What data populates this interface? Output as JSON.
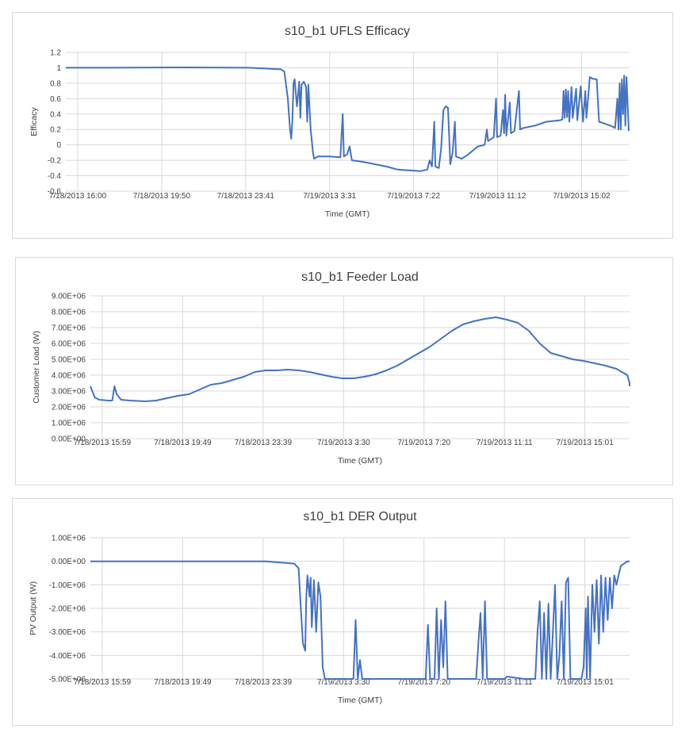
{
  "chart_data": [
    {
      "type": "line",
      "title": "s10_b1 UFLS Efficacy",
      "xlabel": "Time (GMT)",
      "ylabel": "Efficacy",
      "x_tick_labels": [
        "7/18/2013 16:00",
        "7/18/2013 19:50",
        "7/18/2013 23:41",
        "7/19/2013 3:31",
        "7/19/2013 7:22",
        "7/19/2013 11:12",
        "7/19/2013 15:02"
      ],
      "y_tick_labels": [
        "-0.6",
        "-0.4",
        "-0.2",
        "0",
        "0.2",
        "0.4",
        "0.6",
        "0.8",
        "1",
        "1.2"
      ],
      "ylim": [
        -0.6,
        1.2
      ],
      "xlim_hours": [
        0,
        24.6
      ],
      "series": [
        {
          "color": "#4472c4",
          "points": [
            [
              0,
              1.0
            ],
            [
              2,
              1.0
            ],
            [
              5,
              1.005
            ],
            [
              8,
              1.0
            ],
            [
              9.4,
              0.98
            ],
            [
              9.55,
              0.95
            ],
            [
              9.7,
              0.6
            ],
            [
              9.8,
              0.2
            ],
            [
              9.85,
              0.08
            ],
            [
              9.9,
              0.3
            ],
            [
              9.95,
              0.8
            ],
            [
              10.0,
              0.85
            ],
            [
              10.1,
              0.5
            ],
            [
              10.2,
              0.82
            ],
            [
              10.25,
              0.35
            ],
            [
              10.3,
              0.78
            ],
            [
              10.4,
              0.82
            ],
            [
              10.5,
              0.75
            ],
            [
              10.55,
              0.3
            ],
            [
              10.6,
              0.78
            ],
            [
              10.7,
              0.2
            ],
            [
              10.8,
              -0.1
            ],
            [
              10.85,
              -0.18
            ],
            [
              11.0,
              -0.15
            ],
            [
              11.5,
              -0.15
            ],
            [
              12.0,
              -0.16
            ],
            [
              12.1,
              0.4
            ],
            [
              12.15,
              -0.15
            ],
            [
              12.3,
              -0.12
            ],
            [
              12.4,
              -0.02
            ],
            [
              12.5,
              -0.2
            ],
            [
              13.0,
              -0.22
            ],
            [
              13.5,
              -0.25
            ],
            [
              14.0,
              -0.28
            ],
            [
              14.5,
              -0.32
            ],
            [
              15.0,
              -0.33
            ],
            [
              15.5,
              -0.34
            ],
            [
              15.8,
              -0.32
            ],
            [
              15.9,
              -0.2
            ],
            [
              16.0,
              -0.28
            ],
            [
              16.1,
              0.3
            ],
            [
              16.15,
              -0.28
            ],
            [
              16.3,
              -0.3
            ],
            [
              16.4,
              -0.05
            ],
            [
              16.5,
              0.45
            ],
            [
              16.6,
              0.5
            ],
            [
              16.7,
              0.48
            ],
            [
              16.8,
              -0.25
            ],
            [
              16.9,
              -0.1
            ],
            [
              17.0,
              0.3
            ],
            [
              17.05,
              -0.15
            ],
            [
              17.3,
              -0.18
            ],
            [
              17.6,
              -0.12
            ],
            [
              18.0,
              -0.02
            ],
            [
              18.3,
              0.0
            ],
            [
              18.4,
              0.2
            ],
            [
              18.45,
              0.05
            ],
            [
              18.7,
              0.1
            ],
            [
              18.8,
              0.6
            ],
            [
              18.85,
              0.1
            ],
            [
              19.0,
              0.12
            ],
            [
              19.1,
              0.45
            ],
            [
              19.15,
              0.15
            ],
            [
              19.2,
              0.65
            ],
            [
              19.25,
              0.12
            ],
            [
              19.4,
              0.55
            ],
            [
              19.45,
              0.15
            ],
            [
              19.6,
              0.18
            ],
            [
              19.8,
              0.7
            ],
            [
              19.85,
              0.2
            ],
            [
              20.0,
              0.22
            ],
            [
              20.5,
              0.25
            ],
            [
              21.0,
              0.3
            ],
            [
              21.6,
              0.32
            ],
            [
              21.7,
              0.33
            ],
            [
              21.75,
              0.7
            ],
            [
              21.8,
              0.35
            ],
            [
              21.85,
              0.72
            ],
            [
              21.9,
              0.36
            ],
            [
              21.95,
              0.7
            ],
            [
              22.0,
              0.3
            ],
            [
              22.1,
              0.75
            ],
            [
              22.15,
              0.35
            ],
            [
              22.3,
              0.73
            ],
            [
              22.35,
              0.32
            ],
            [
              22.5,
              0.76
            ],
            [
              22.6,
              0.3
            ],
            [
              22.7,
              0.7
            ],
            [
              22.75,
              0.35
            ],
            [
              22.9,
              0.88
            ],
            [
              23.0,
              0.86
            ],
            [
              23.2,
              0.85
            ],
            [
              23.3,
              0.3
            ],
            [
              23.5,
              0.28
            ],
            [
              23.8,
              0.25
            ],
            [
              24.0,
              0.22
            ],
            [
              24.1,
              0.6
            ],
            [
              24.15,
              0.2
            ],
            [
              24.2,
              0.8
            ],
            [
              24.25,
              0.2
            ],
            [
              24.3,
              0.85
            ],
            [
              24.35,
              0.4
            ],
            [
              24.4,
              0.9
            ],
            [
              24.45,
              0.25
            ],
            [
              24.5,
              0.88
            ],
            [
              24.6,
              0.18
            ]
          ]
        }
      ]
    },
    {
      "type": "line",
      "title": "s10_b1 Feeder Load",
      "xlabel": "Time (GMT)",
      "ylabel": "Customer Load (W)",
      "x_tick_labels": [
        "7/18/2013 15:59",
        "7/18/2013 19:49",
        "7/18/2013 23:39",
        "7/19/2013 3:30",
        "7/19/2013 7:20",
        "7/19/2013 11:11",
        "7/19/2013 15:01"
      ],
      "y_tick_labels": [
        "0.00E+00",
        "1.00E+06",
        "2.00E+06",
        "3.00E+06",
        "4.00E+06",
        "5.00E+06",
        "6.00E+06",
        "7.00E+06",
        "8.00E+06",
        "9.00E+06"
      ],
      "ylim": [
        0,
        9000000
      ],
      "xlim_hours": [
        0,
        24.6
      ],
      "series": [
        {
          "color": "#4472c4",
          "points": [
            [
              0,
              3300000
            ],
            [
              0.2,
              2600000
            ],
            [
              0.4,
              2450000
            ],
            [
              0.8,
              2400000
            ],
            [
              1.0,
              2400000
            ],
            [
              1.1,
              3300000
            ],
            [
              1.2,
              2800000
            ],
            [
              1.4,
              2450000
            ],
            [
              1.8,
              2400000
            ],
            [
              2.5,
              2350000
            ],
            [
              3.0,
              2400000
            ],
            [
              3.5,
              2550000
            ],
            [
              4.0,
              2700000
            ],
            [
              4.5,
              2800000
            ],
            [
              5.0,
              3100000
            ],
            [
              5.5,
              3400000
            ],
            [
              6.0,
              3500000
            ],
            [
              6.5,
              3700000
            ],
            [
              7.0,
              3900000
            ],
            [
              7.5,
              4200000
            ],
            [
              8.0,
              4300000
            ],
            [
              8.5,
              4300000
            ],
            [
              9.0,
              4350000
            ],
            [
              9.5,
              4300000
            ],
            [
              10.0,
              4200000
            ],
            [
              10.5,
              4050000
            ],
            [
              11.0,
              3900000
            ],
            [
              11.5,
              3800000
            ],
            [
              12.0,
              3800000
            ],
            [
              12.5,
              3900000
            ],
            [
              13.0,
              4050000
            ],
            [
              13.5,
              4300000
            ],
            [
              14.0,
              4600000
            ],
            [
              14.5,
              5000000
            ],
            [
              15.0,
              5400000
            ],
            [
              15.5,
              5800000
            ],
            [
              16.0,
              6300000
            ],
            [
              16.5,
              6800000
            ],
            [
              17.0,
              7200000
            ],
            [
              17.5,
              7400000
            ],
            [
              18.0,
              7550000
            ],
            [
              18.5,
              7650000
            ],
            [
              19.0,
              7500000
            ],
            [
              19.5,
              7300000
            ],
            [
              20.0,
              6800000
            ],
            [
              20.5,
              6000000
            ],
            [
              21.0,
              5400000
            ],
            [
              21.5,
              5200000
            ],
            [
              22.0,
              5000000
            ],
            [
              22.5,
              4900000
            ],
            [
              23.0,
              4750000
            ],
            [
              23.5,
              4600000
            ],
            [
              24.0,
              4400000
            ],
            [
              24.5,
              4000000
            ],
            [
              24.8,
              3500000
            ],
            [
              25.1,
              3300000
            ]
          ]
        }
      ]
    },
    {
      "type": "line",
      "title": "s10_b1 DER Output",
      "xlabel": "Time (GMT)",
      "ylabel": "PV Output (W)",
      "x_tick_labels": [
        "7/18/2013 15:59",
        "7/18/2013 19:49",
        "7/18/2013 23:39",
        "7/19/2013 3:30",
        "7/19/2013 7:20",
        "7/19/2013 11:11",
        "7/19/2013 15:01"
      ],
      "y_tick_labels": [
        "-5.00E+06",
        "-4.00E+06",
        "-3.00E+06",
        "-2.00E+06",
        "-1.00E+06",
        "0.00E+00",
        "1.00E+06"
      ],
      "ylim": [
        -5000000,
        1000000
      ],
      "xlim_hours": [
        0,
        24.6
      ],
      "series": [
        {
          "color": "#4472c4",
          "points": [
            [
              0,
              0
            ],
            [
              2,
              0
            ],
            [
              5,
              0
            ],
            [
              8,
              0
            ],
            [
              9.3,
              -100000
            ],
            [
              9.5,
              -300000
            ],
            [
              9.6,
              -2000000
            ],
            [
              9.7,
              -3500000
            ],
            [
              9.8,
              -3800000
            ],
            [
              9.85,
              -1500000
            ],
            [
              9.9,
              -600000
            ],
            [
              10.0,
              -1500000
            ],
            [
              10.05,
              -700000
            ],
            [
              10.1,
              -2800000
            ],
            [
              10.2,
              -800000
            ],
            [
              10.3,
              -3000000
            ],
            [
              10.4,
              -900000
            ],
            [
              10.5,
              -1500000
            ],
            [
              10.6,
              -4500000
            ],
            [
              10.7,
              -5000000
            ],
            [
              12.0,
              -5000000
            ],
            [
              12.1,
              -2500000
            ],
            [
              12.2,
              -5000000
            ],
            [
              12.3,
              -4200000
            ],
            [
              12.4,
              -5000000
            ],
            [
              15.3,
              -5000000
            ],
            [
              15.4,
              -2700000
            ],
            [
              15.5,
              -5000000
            ],
            [
              15.7,
              -5000000
            ],
            [
              15.8,
              -2000000
            ],
            [
              15.9,
              -5000000
            ],
            [
              16.0,
              -2500000
            ],
            [
              16.1,
              -4500000
            ],
            [
              16.2,
              -1700000
            ],
            [
              16.3,
              -5000000
            ],
            [
              17.6,
              -5000000
            ],
            [
              17.7,
              -3500000
            ],
            [
              17.8,
              -2200000
            ],
            [
              17.9,
              -5000000
            ],
            [
              18.0,
              -1700000
            ],
            [
              18.1,
              -5000000
            ],
            [
              18.2,
              -5000000
            ],
            [
              18.9,
              -5000000
            ],
            [
              19.0,
              -4900000
            ],
            [
              19.8,
              -5000000
            ],
            [
              20.3,
              -5000000
            ],
            [
              20.4,
              -3000000
            ],
            [
              20.5,
              -1700000
            ],
            [
              20.6,
              -5000000
            ],
            [
              20.7,
              -2200000
            ],
            [
              20.8,
              -5000000
            ],
            [
              20.9,
              -1800000
            ],
            [
              21.0,
              -5000000
            ],
            [
              21.1,
              -3000000
            ],
            [
              21.2,
              -1000000
            ],
            [
              21.3,
              -5000000
            ],
            [
              21.4,
              -4000000
            ],
            [
              21.5,
              -1700000
            ],
            [
              21.6,
              -5000000
            ],
            [
              21.7,
              -900000
            ],
            [
              21.8,
              -700000
            ],
            [
              21.9,
              -5000000
            ],
            [
              22.4,
              -5000000
            ],
            [
              22.5,
              -4500000
            ],
            [
              22.6,
              -2000000
            ],
            [
              22.65,
              -5000000
            ],
            [
              22.7,
              -1500000
            ],
            [
              22.8,
              -5000000
            ],
            [
              22.9,
              -1000000
            ],
            [
              23.0,
              -3000000
            ],
            [
              23.1,
              -800000
            ],
            [
              23.2,
              -3500000
            ],
            [
              23.3,
              -600000
            ],
            [
              23.4,
              -3000000
            ],
            [
              23.5,
              -700000
            ],
            [
              23.6,
              -2500000
            ],
            [
              23.7,
              -700000
            ],
            [
              23.8,
              -2000000
            ],
            [
              23.9,
              -600000
            ],
            [
              24.0,
              -1000000
            ],
            [
              24.2,
              -200000
            ],
            [
              24.5,
              0
            ],
            [
              25.1,
              0
            ]
          ]
        }
      ]
    }
  ]
}
